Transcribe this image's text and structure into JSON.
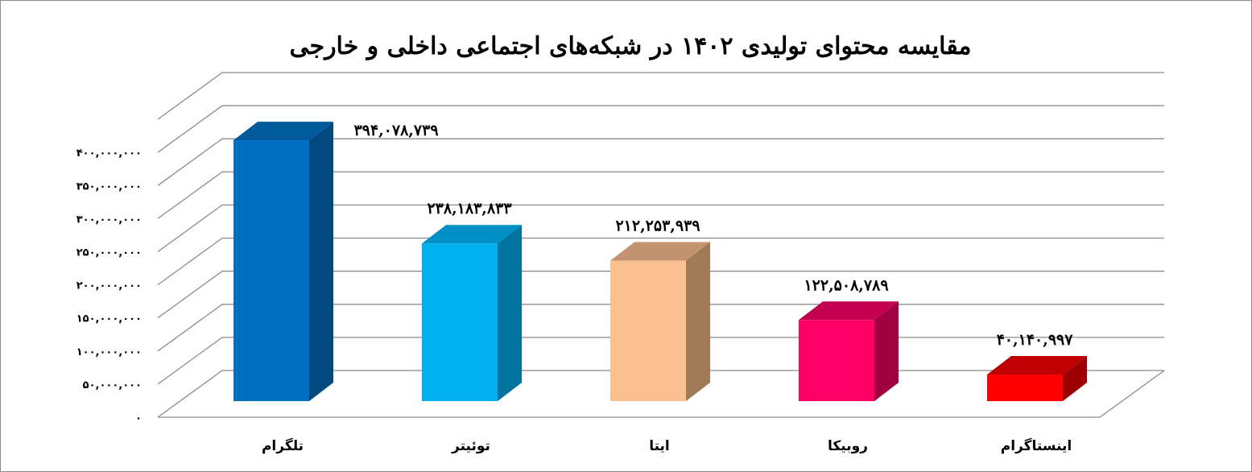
{
  "chart_data": {
    "type": "bar",
    "title": "مقایسه محتوای تولیدی ۱۴۰۲ در شبکه‌های اجتماعی داخلی و خارجی",
    "categories": [
      "تلگرام",
      "توئیتر",
      "ایتا",
      "روبیکا",
      "اینستاگرام"
    ],
    "values": [
      394078739,
      238183833,
      212253939,
      122508789,
      40140997
    ],
    "value_labels": [
      "۳۹۴,۰۷۸,۷۳۹",
      "۲۳۸,۱۸۳,۸۳۳",
      "۲۱۲,۲۵۳,۹۳۹",
      "۱۲۲,۵۰۸,۷۸۹",
      "۴۰,۱۴۰,۹۹۷"
    ],
    "ytick_values": [
      0,
      50000000,
      100000000,
      150000000,
      200000000,
      250000000,
      300000000,
      350000000,
      400000000
    ],
    "ytick_labels": [
      "۰",
      "۵۰,۰۰۰,۰۰۰",
      "۱۰۰,۰۰۰,۰۰۰",
      "۱۵۰,۰۰۰,۰۰۰",
      "۲۰۰,۰۰۰,۰۰۰",
      "۲۵۰,۰۰۰,۰۰۰",
      "۳۰۰,۰۰۰,۰۰۰",
      "۳۵۰,۰۰۰,۰۰۰",
      "۴۰۰,۰۰۰,۰۰۰"
    ],
    "ylim": [
      0,
      450000000
    ],
    "grid": true,
    "three_d": true,
    "colors": [
      {
        "front": "#0070c0",
        "side": "#004a80",
        "top": "#005a9c"
      },
      {
        "front": "#00b0f0",
        "side": "#00749e",
        "top": "#0090c4"
      },
      {
        "front": "#fac090",
        "side": "#a07a58",
        "top": "#c49470"
      },
      {
        "front": "#ff0066",
        "side": "#a00040",
        "top": "#c40050"
      },
      {
        "front": "#ff0000",
        "side": "#9c0000",
        "top": "#c00000"
      }
    ]
  }
}
